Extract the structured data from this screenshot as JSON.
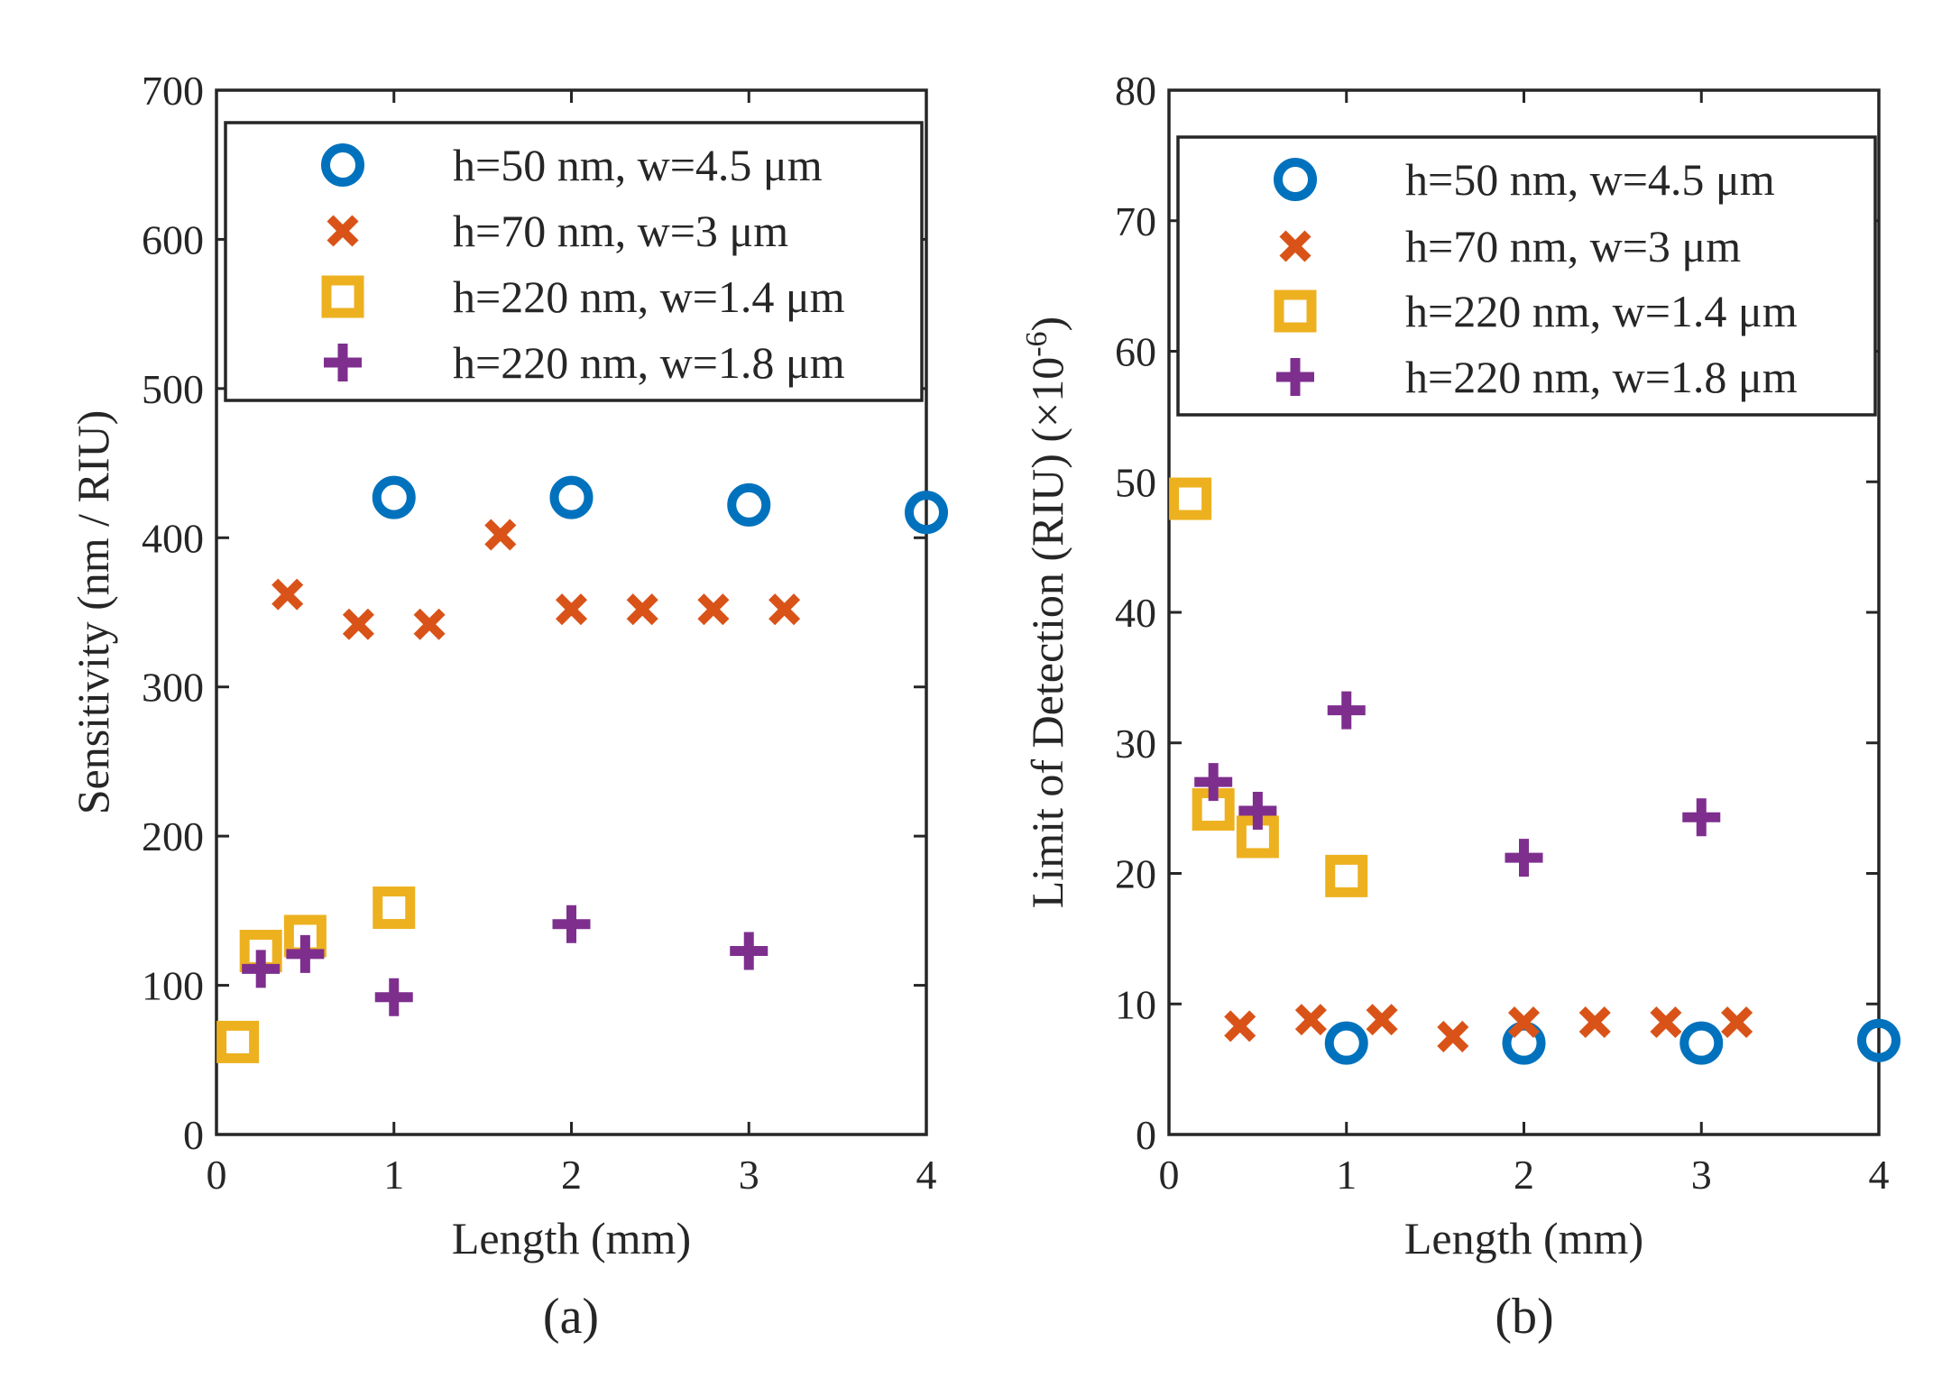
{
  "colors": {
    "series1": "#0072BD",
    "series2": "#D95319",
    "series3": "#EDB120",
    "series4": "#7E2F8E",
    "axis": "#262626"
  },
  "series_names": [
    "h=50 nm, w=4.5  μm",
    "h=70 nm, w=3 μm",
    "h=220 nm, w=1.4 μm",
    "h=220 nm, w=1.8 μm"
  ],
  "chart_data": [
    {
      "type": "scatter",
      "id": "a",
      "caption": "(a)",
      "xlabel": "Length (mm)",
      "ylabel": "Sensitivity (nm / RIU)",
      "xlim": [
        0,
        4
      ],
      "ylim": [
        0,
        700
      ],
      "xticks": [
        0,
        1,
        2,
        3,
        4
      ],
      "yticks": [
        0,
        100,
        200,
        300,
        400,
        500,
        600,
        700
      ],
      "legend_position": "top",
      "series": [
        {
          "name": "h=50 nm, w=4.5  μm",
          "marker": "circle",
          "color": "#0072BD",
          "x": [
            1.0,
            2.0,
            3.0,
            4.0
          ],
          "y": [
            427,
            427,
            422,
            417
          ]
        },
        {
          "name": "h=70 nm, w=3 μm",
          "marker": "x",
          "color": "#D95319",
          "x": [
            0.4,
            0.8,
            1.2,
            1.6,
            2.0,
            2.4,
            2.8,
            3.2
          ],
          "y": [
            362,
            342,
            342,
            402,
            352,
            352,
            352,
            352
          ]
        },
        {
          "name": "h=220 nm, w=1.4 μm",
          "marker": "square",
          "color": "#EDB120",
          "x": [
            0.12,
            0.25,
            0.5,
            1.0
          ],
          "y": [
            62,
            123,
            133,
            152
          ]
        },
        {
          "name": "h=220 nm, w=1.8 μm",
          "marker": "plus",
          "color": "#7E2F8E",
          "x": [
            0.25,
            0.5,
            1.0,
            2.0,
            3.0
          ],
          "y": [
            111,
            121,
            92,
            141,
            123
          ]
        }
      ]
    },
    {
      "type": "scatter",
      "id": "b",
      "caption": "(b)",
      "xlabel": "Length (mm)",
      "ylabel": "Limit of Detection (RIU) (×10",
      "ylabel_exp": "-6",
      "ylabel_close": ")",
      "xlim": [
        0,
        4
      ],
      "ylim": [
        0,
        80
      ],
      "xticks": [
        0,
        1,
        2,
        3,
        4
      ],
      "yticks": [
        0,
        10,
        20,
        30,
        40,
        50,
        60,
        70,
        80
      ],
      "legend_position": "top",
      "series": [
        {
          "name": "h=50 nm, w=4.5  μm",
          "marker": "circle",
          "color": "#0072BD",
          "x": [
            1.0,
            2.0,
            3.0,
            4.0
          ],
          "y": [
            7.0,
            7.0,
            7.0,
            7.2
          ]
        },
        {
          "name": "h=70 nm, w=3 μm",
          "marker": "x",
          "color": "#D95319",
          "x": [
            0.4,
            0.8,
            1.2,
            1.6,
            2.0,
            2.4,
            2.8,
            3.2
          ],
          "y": [
            8.3,
            8.8,
            8.8,
            7.5,
            8.6,
            8.6,
            8.6,
            8.6
          ]
        },
        {
          "name": "h=220 nm, w=1.4 μm",
          "marker": "square",
          "color": "#EDB120",
          "x": [
            0.12,
            0.25,
            0.5,
            1.0
          ],
          "y": [
            48.7,
            24.9,
            22.8,
            19.8
          ]
        },
        {
          "name": "h=220 nm, w=1.8 μm",
          "marker": "plus",
          "color": "#7E2F8E",
          "x": [
            0.25,
            0.5,
            1.0,
            2.0,
            3.0
          ],
          "y": [
            27.0,
            24.8,
            32.5,
            21.2,
            24.3
          ]
        }
      ]
    }
  ]
}
